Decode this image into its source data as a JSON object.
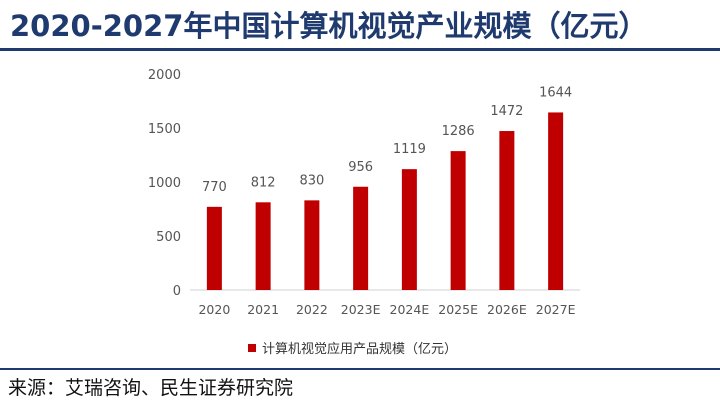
{
  "header": {
    "title": "2020-2027年中国计算机视觉产业规模（亿元）"
  },
  "footer": {
    "source": "来源：艾瑞咨询、民生证券研究院"
  },
  "colors": {
    "title": "#1f3a6e",
    "bar": "#c00000",
    "axis_text": "#555555"
  },
  "chart_data": {
    "type": "bar",
    "categories": [
      "2020",
      "2021",
      "2022",
      "2023E",
      "2024E",
      "2025E",
      "2026E",
      "2027E"
    ],
    "series": [
      {
        "name": "计算机视觉应用产品规模（亿元）",
        "values": [
          770,
          812,
          830,
          956,
          1119,
          1286,
          1472,
          1644
        ]
      }
    ],
    "ylim": [
      0,
      2000
    ],
    "yticks": [
      0,
      500,
      1000,
      1500,
      2000
    ],
    "grid": false,
    "legend_position": "bottom",
    "data_labels": true
  }
}
